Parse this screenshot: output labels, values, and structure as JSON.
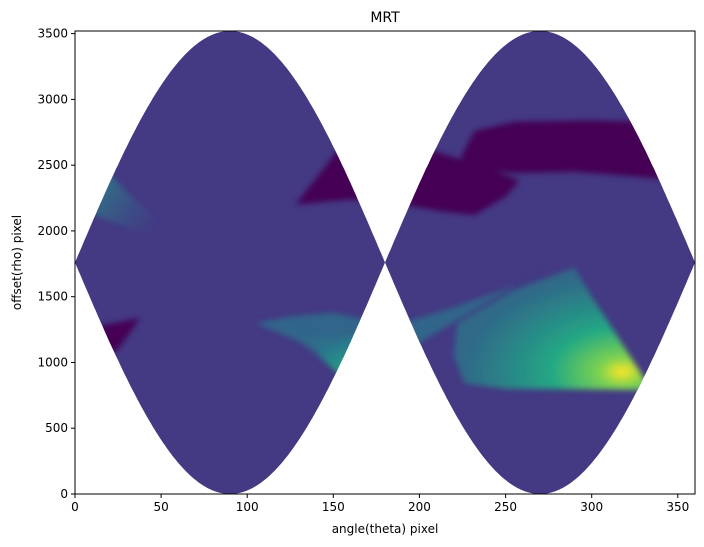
{
  "chart_data": {
    "type": "heatmap",
    "title": "MRT",
    "xlabel": "angle(theta) pixel",
    "ylabel": "offset(rho) pixel",
    "xlim": [
      0,
      360
    ],
    "ylim": [
      0,
      3520
    ],
    "x_ticks": [
      0,
      50,
      100,
      150,
      200,
      250,
      300,
      350
    ],
    "y_ticks": [
      0,
      500,
      1000,
      1500,
      2000,
      2500,
      3000,
      3500
    ],
    "colormap": "viridis",
    "background_value_color": "#443983",
    "low_value_color": "#440154",
    "high_value_color": "#fde725",
    "grid": false,
    "support_region": "sinusoidal band: rho between 1760 - 1760*|sin(theta)| and 1760 + 1760*|sin(theta)| (theta in degrees)",
    "low_regions": [
      {
        "theta_range": [
          125,
          260
        ],
        "rho_range": [
          2050,
          2800
        ]
      },
      {
        "theta_range": [
          222,
          360
        ],
        "rho_range": [
          2300,
          2850
        ]
      },
      {
        "theta_range": [
          0,
          40
        ],
        "rho_range": [
          880,
          1350
        ]
      }
    ],
    "high_regions": [
      {
        "theta_range": [
          0,
          60
        ],
        "rho_range": [
          1950,
          2600
        ]
      },
      {
        "theta_range": [
          110,
          180
        ],
        "rho_range": [
          780,
          1350
        ]
      },
      {
        "theta_range": [
          180,
          290
        ],
        "rho_range": [
          780,
          1750
        ]
      },
      {
        "theta_range": [
          225,
          360
        ],
        "rho_range": [
          780,
          1350
        ]
      }
    ],
    "peaks": [
      {
        "theta": 335,
        "rho": 790
      },
      {
        "theta": 165,
        "rho": 790
      }
    ]
  }
}
